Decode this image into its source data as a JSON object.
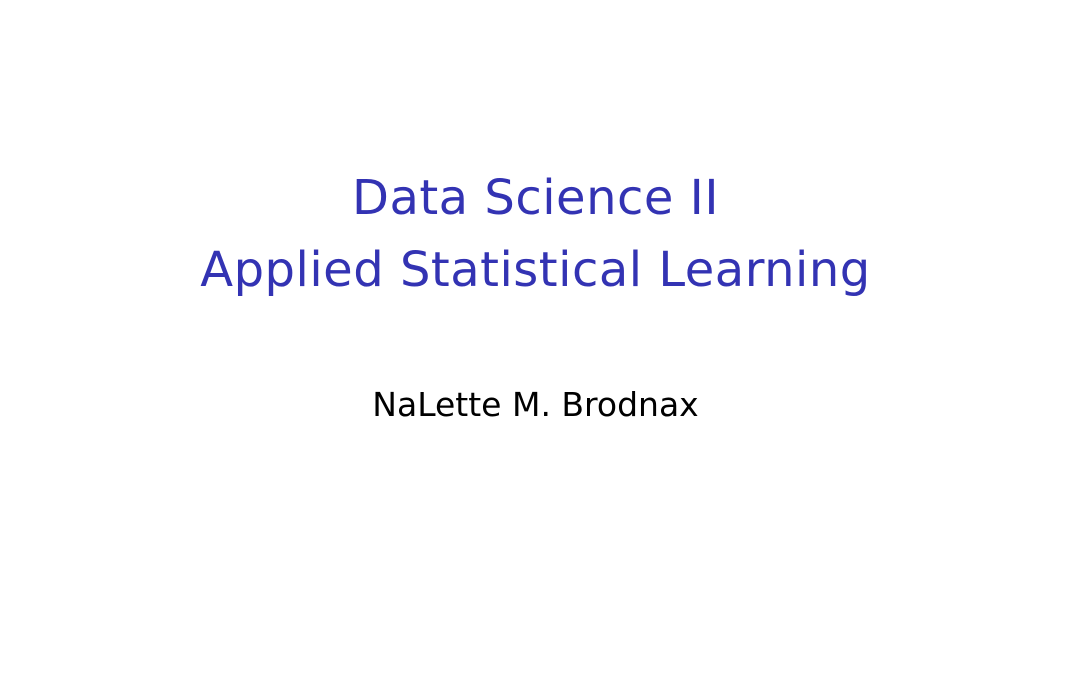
{
  "slide": {
    "title_line_1": "Data Science II",
    "title_line_2": "Applied Statistical Learning",
    "author": "NaLette M. Brodnax"
  },
  "colors": {
    "title": "#3333b3",
    "author": "#000000",
    "background": "#ffffff"
  }
}
